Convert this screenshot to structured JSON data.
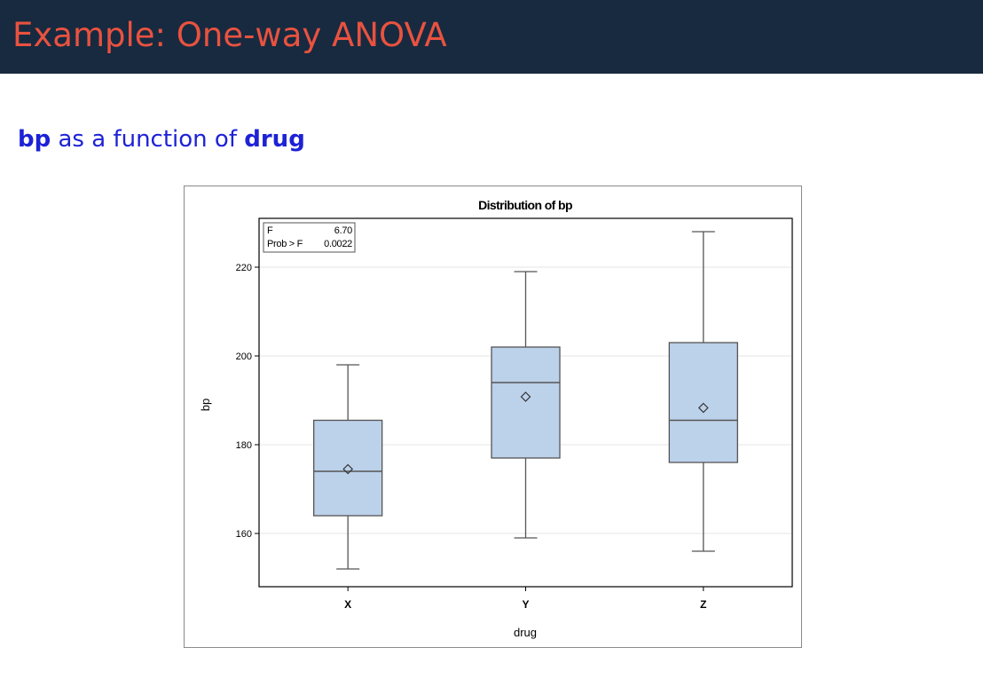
{
  "slide": {
    "title": "Example: One-way ANOVA",
    "subtitle_var1": "bp",
    "subtitle_mid": "as a function of",
    "subtitle_var2": "drug"
  },
  "colors": {
    "header_bg": "#172a40",
    "title": "#e9523f",
    "subtitle": "#1d22d6",
    "box_fill": "#bcd1ea",
    "box_stroke": "#555555"
  },
  "chart_data": {
    "type": "boxplot",
    "title": "Distribution of bp",
    "xlabel": "drug",
    "ylabel": "bp",
    "categories": [
      "X",
      "Y",
      "Z"
    ],
    "ylim": [
      148,
      231
    ],
    "yticks": [
      160,
      180,
      200,
      220
    ],
    "grid": true,
    "boxes": [
      {
        "category": "X",
        "min": 152,
        "q1": 164,
        "median": 174,
        "q3": 185.5,
        "max": 198,
        "mean": 174.5
      },
      {
        "category": "Y",
        "min": 159,
        "q1": 177,
        "median": 194,
        "q3": 202,
        "max": 219,
        "mean": 190.8
      },
      {
        "category": "Z",
        "min": 156,
        "q1": 176,
        "median": 185.5,
        "q3": 203,
        "max": 228,
        "mean": 188.3
      }
    ],
    "inset": {
      "rows": [
        {
          "label": "F",
          "value": "6.70"
        },
        {
          "label": "Prob > F",
          "value": "0.0022"
        }
      ],
      "placement": "top-left"
    }
  }
}
